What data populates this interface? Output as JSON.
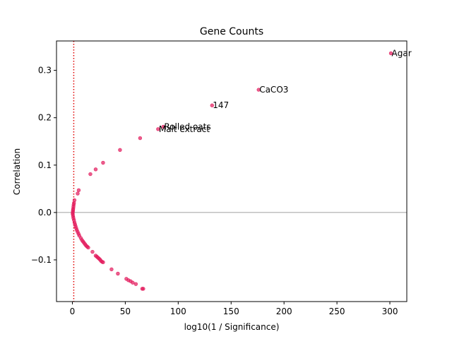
{
  "chart_data": {
    "type": "scatter",
    "title": "Gene Counts",
    "xlabel": "log10(1 / Significance)",
    "ylabel": "Correlation",
    "xlim": [
      -15,
      316
    ],
    "ylim": [
      -0.188,
      0.362
    ],
    "xticks": [
      0,
      50,
      100,
      150,
      200,
      250,
      300
    ],
    "xtick_labels": [
      "0",
      "50",
      "100",
      "150",
      "200",
      "250",
      "300"
    ],
    "yticks": [
      -0.1,
      0.0,
      0.1,
      0.2,
      0.3
    ],
    "ytick_labels": [
      "−0.1",
      "0.0",
      "0.1",
      "0.2",
      "0.3"
    ],
    "grid": false,
    "point_color": "#e31a5c",
    "reference_lines": {
      "horizontal_y": 0.0,
      "horizontal_color": "#808080",
      "vertical_x": 1.3,
      "vertical_color": "#e00000",
      "vertical_style": "dotted"
    },
    "points": [
      {
        "x": 301,
        "y": 0.336,
        "label": "Agar"
      },
      {
        "x": 176,
        "y": 0.259,
        "label": "CaCO3"
      },
      {
        "x": 132,
        "y": 0.226,
        "label": "147"
      },
      {
        "x": 86,
        "y": 0.181,
        "label": "Rolled oats"
      },
      {
        "x": 81,
        "y": 0.176,
        "label": "Malt extract"
      },
      {
        "x": 64,
        "y": 0.157
      },
      {
        "x": 45,
        "y": 0.132
      },
      {
        "x": 29,
        "y": 0.105
      },
      {
        "x": 22,
        "y": 0.091
      },
      {
        "x": 17,
        "y": 0.081
      },
      {
        "x": 6,
        "y": 0.047
      },
      {
        "x": 5,
        "y": 0.04
      },
      {
        "x": 2,
        "y": 0.026
      },
      {
        "x": 1.5,
        "y": 0.02
      },
      {
        "x": 1.2,
        "y": 0.016
      },
      {
        "x": 1.0,
        "y": 0.012
      },
      {
        "x": 0.8,
        "y": 0.008
      },
      {
        "x": 0.6,
        "y": 0.005
      },
      {
        "x": 0.5,
        "y": 0.002
      },
      {
        "x": 0.3,
        "y": -0.001
      },
      {
        "x": 0.4,
        "y": -0.004
      },
      {
        "x": 0.7,
        "y": -0.008
      },
      {
        "x": 1.0,
        "y": -0.012
      },
      {
        "x": 1.5,
        "y": -0.016
      },
      {
        "x": 2.0,
        "y": -0.021
      },
      {
        "x": 2.5,
        "y": -0.025
      },
      {
        "x": 3.0,
        "y": -0.029
      },
      {
        "x": 3.6,
        "y": -0.033
      },
      {
        "x": 4.2,
        "y": -0.037
      },
      {
        "x": 5.0,
        "y": -0.041
      },
      {
        "x": 5.8,
        "y": -0.045
      },
      {
        "x": 6.6,
        "y": -0.049
      },
      {
        "x": 8.0,
        "y": -0.054
      },
      {
        "x": 9.0,
        "y": -0.058
      },
      {
        "x": 10.0,
        "y": -0.061
      },
      {
        "x": 11.0,
        "y": -0.064
      },
      {
        "x": 12.0,
        "y": -0.067
      },
      {
        "x": 13.0,
        "y": -0.07
      },
      {
        "x": 14.0,
        "y": -0.072
      },
      {
        "x": 15.0,
        "y": -0.074
      },
      {
        "x": 19,
        "y": -0.083
      },
      {
        "x": 22,
        "y": -0.091
      },
      {
        "x": 23,
        "y": -0.093
      },
      {
        "x": 24,
        "y": -0.095
      },
      {
        "x": 25,
        "y": -0.097
      },
      {
        "x": 26,
        "y": -0.099
      },
      {
        "x": 27,
        "y": -0.102
      },
      {
        "x": 28,
        "y": -0.104
      },
      {
        "x": 29,
        "y": -0.105
      },
      {
        "x": 37,
        "y": -0.12
      },
      {
        "x": 43,
        "y": -0.129
      },
      {
        "x": 51,
        "y": -0.14
      },
      {
        "x": 53,
        "y": -0.143
      },
      {
        "x": 55,
        "y": -0.145
      },
      {
        "x": 57,
        "y": -0.148
      },
      {
        "x": 60,
        "y": -0.151
      },
      {
        "x": 66,
        "y": -0.161
      },
      {
        "x": 67,
        "y": -0.161
      }
    ]
  }
}
